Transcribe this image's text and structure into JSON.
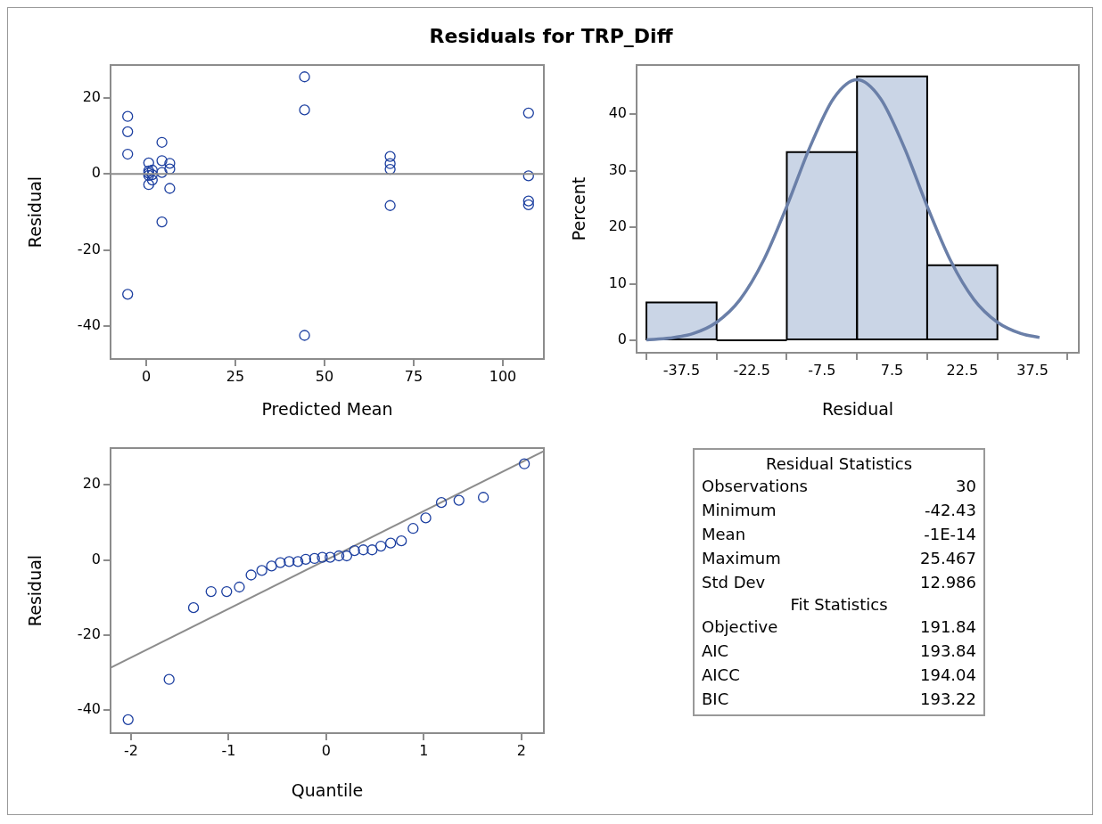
{
  "chart_data": [
    {
      "type": "scatter",
      "title": "Residuals for TRP_Diff",
      "xlabel": "Predicted Mean",
      "ylabel": "Residual",
      "xlim": [
        -10,
        111.5
      ],
      "ylim": [
        -48.6,
        28.6
      ],
      "xticks": [
        0,
        25,
        50,
        75,
        100
      ],
      "yticks": [
        -40,
        -20,
        0,
        20
      ],
      "marker": "circle",
      "color": "#1c3fa0",
      "x": [
        -5.2,
        -5.2,
        -5.2,
        -5.2,
        0.7,
        0.7,
        0.7,
        0.7,
        0.7,
        1.7,
        1.7,
        1.7,
        4.4,
        4.4,
        4.4,
        4.4,
        6.6,
        6.6,
        6.6,
        44.4,
        44.4,
        44.4,
        68.4,
        68.4,
        68.4,
        68.4,
        107.2,
        107.2,
        107.2,
        107.2
      ],
      "values": [
        15.1,
        11.1,
        5.2,
        -31.6,
        2.9,
        0.8,
        0.2,
        -0.4,
        -2.8,
        1.0,
        -0.2,
        -1.6,
        8.3,
        3.5,
        0.4,
        -12.6,
        2.8,
        1.3,
        -3.8,
        25.5,
        16.8,
        -42.4,
        4.6,
        2.7,
        1.2,
        -8.3,
        16.0,
        -0.5,
        -7.1,
        -8.1
      ],
      "ref_lines": [
        {
          "axis": "y",
          "value": 0,
          "color": "#8c8c8c"
        }
      ]
    },
    {
      "type": "histogram",
      "xlabel": "Residual",
      "ylabel": "Percent",
      "xlim": [
        -47.1,
        47.4
      ],
      "ylim": [
        -2.2,
        48.7
      ],
      "xticks": [
        -37.5,
        -22.5,
        -7.5,
        7.5,
        22.5,
        37.5
      ],
      "yticks": [
        0,
        10,
        20,
        30,
        40
      ],
      "bins": [
        -45,
        -30,
        -15,
        0,
        15,
        30
      ],
      "series": [
        {
          "type": "histogram",
          "color": "#cad5e6",
          "values": [
            6.7,
            0,
            33.3,
            46.7,
            13.3
          ]
        },
        {
          "type": "line",
          "color": "#6a7fa8",
          "x": [
            -45,
            -40,
            -35,
            -30,
            -25,
            -20,
            -15,
            -10,
            -5,
            0,
            5,
            10,
            15,
            20,
            25,
            30,
            35,
            39
          ],
          "values": [
            0.1,
            0.4,
            1.2,
            3.2,
            7.2,
            14.1,
            23.7,
            34.3,
            42.8,
            46.1,
            42.8,
            34.3,
            23.7,
            14.1,
            7.2,
            3.2,
            1.2,
            0.5
          ]
        }
      ]
    },
    {
      "type": "scatter",
      "xlabel": "Quantile",
      "ylabel": "Residual",
      "xlim": [
        -2.21,
        2.23
      ],
      "ylim": [
        -46.1,
        29.8
      ],
      "xticks": [
        -2,
        -1,
        0,
        1,
        2
      ],
      "yticks": [
        -40,
        -20,
        0,
        20
      ],
      "marker": "circle",
      "series": [
        {
          "color": "#1c3fa0",
          "x": [
            -2.03,
            -1.61,
            -1.36,
            -1.18,
            -1.02,
            -0.89,
            -0.77,
            -0.66,
            -0.56,
            -0.47,
            -0.38,
            -0.29,
            -0.21,
            -0.12,
            -0.04,
            0.04,
            0.13,
            0.21,
            0.29,
            0.38,
            0.47,
            0.56,
            0.66,
            0.77,
            0.89,
            1.02,
            1.18,
            1.36,
            1.61,
            2.03
          ],
          "values": [
            -42.5,
            -31.8,
            -12.7,
            -8.4,
            -8.4,
            -7.2,
            -4.0,
            -2.8,
            -1.6,
            -0.7,
            -0.4,
            -0.4,
            0.2,
            0.4,
            0.7,
            0.7,
            1.1,
            1.1,
            2.5,
            2.7,
            2.7,
            3.7,
            4.5,
            5.1,
            8.4,
            11.2,
            15.3,
            15.9,
            16.7,
            25.6
          ]
        },
        {
          "type": "line",
          "color": "#8c8c8c",
          "marker": "none",
          "x": [
            -2.21,
            2.23
          ],
          "values": [
            -28.7,
            29.0
          ]
        }
      ]
    },
    {
      "type": "other",
      "title": "Residual Statistics",
      "categories": [
        "Observations",
        "Minimum",
        "Mean",
        "Maximum",
        "Std Dev"
      ],
      "value_labels": [
        "30",
        "-42.43",
        "-1E-14",
        "25.467",
        "12.986"
      ]
    },
    {
      "type": "other",
      "title": "Fit Statistics",
      "categories": [
        "Objective",
        "AIC",
        "AICC",
        "BIC"
      ],
      "value_labels": [
        "191.84",
        "193.84",
        "194.04",
        "193.22"
      ]
    }
  ]
}
